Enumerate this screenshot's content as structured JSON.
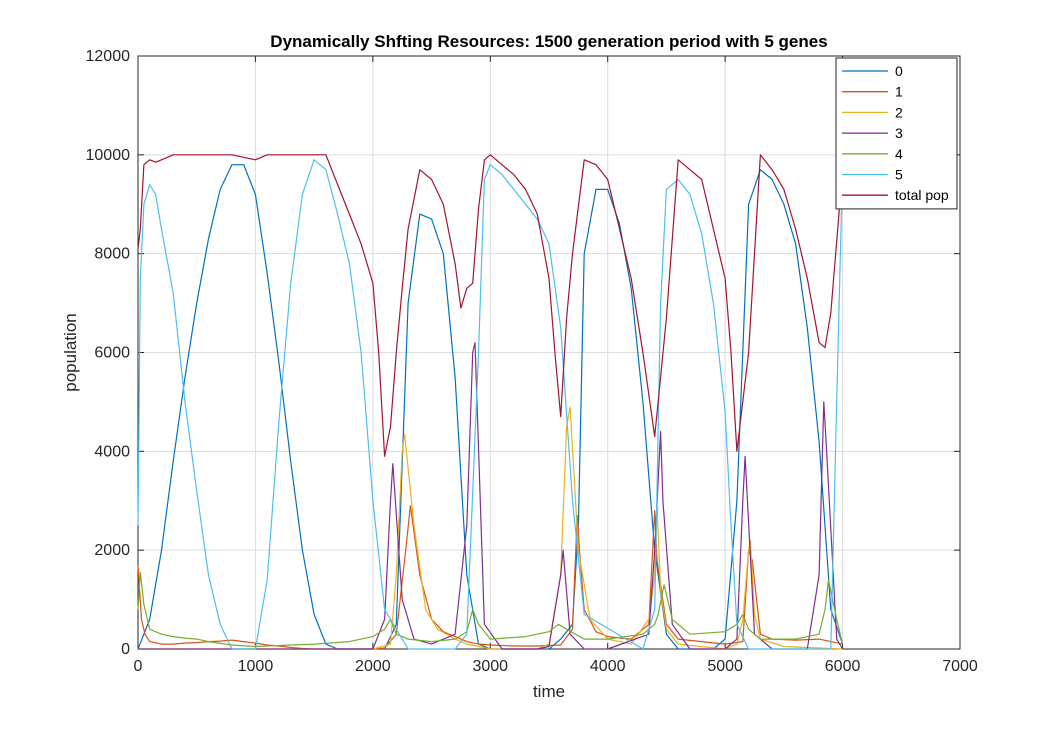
{
  "chart_data": {
    "type": "line",
    "title": "Dynamically Shfting Resources: 1500 generation period with 5 genes",
    "xlabel": "time",
    "ylabel": "population",
    "xlim": [
      0,
      7000
    ],
    "ylim": [
      0,
      12000
    ],
    "xticks": [
      0,
      1000,
      2000,
      3000,
      4000,
      5000,
      6000,
      7000
    ],
    "yticks": [
      0,
      2000,
      4000,
      6000,
      8000,
      10000,
      12000
    ],
    "xtick_labels": [
      "0",
      "1000",
      "2000",
      "3000",
      "4000",
      "5000",
      "6000",
      "7000"
    ],
    "ytick_labels": [
      "0",
      "2000",
      "4000",
      "6000",
      "8000",
      "10000",
      "12000"
    ],
    "grid": true,
    "legend_position": "top-right",
    "series": [
      {
        "name": "0",
        "color": "#0072bd",
        "x": [
          0,
          100,
          200,
          300,
          400,
          500,
          600,
          700,
          800,
          900,
          1000,
          1100,
          1200,
          1300,
          1400,
          1500,
          1600,
          1700,
          1800,
          1900,
          2000,
          2100,
          2200,
          2300,
          2400,
          2500,
          2600,
          2700,
          2800,
          2900,
          3000,
          3100,
          3200,
          3300,
          3400,
          3500,
          3600,
          3700,
          3750,
          3800,
          3900,
          4000,
          4100,
          4200,
          4300,
          4400,
          4500,
          4600,
          4700,
          4800,
          4900,
          5000,
          5100,
          5200,
          5300,
          5400,
          5500,
          5600,
          5700,
          5800,
          5900,
          6000
        ],
        "y": [
          0,
          600,
          2000,
          3800,
          5500,
          7000,
          8300,
          9300,
          9800,
          9800,
          9200,
          7600,
          5800,
          3800,
          2000,
          700,
          100,
          0,
          0,
          0,
          0,
          0,
          500,
          7000,
          8800,
          8700,
          8000,
          5500,
          1500,
          100,
          0,
          0,
          0,
          0,
          0,
          0,
          200,
          500,
          2500,
          8000,
          9300,
          9300,
          8600,
          7300,
          5000,
          2000,
          300,
          0,
          0,
          0,
          0,
          200,
          3000,
          9000,
          9700,
          9500,
          9000,
          8200,
          6500,
          4200,
          800,
          100
        ]
      },
      {
        "name": "1",
        "color": "#d95319",
        "x": [
          0,
          30,
          60,
          100,
          200,
          300,
          400,
          500,
          600,
          700,
          800,
          900,
          1000,
          1100,
          1200,
          1300,
          1400,
          1500,
          1600,
          1800,
          2000,
          2100,
          2200,
          2280,
          2320,
          2400,
          2500,
          2600,
          2700,
          2800,
          2900,
          3000,
          3200,
          3400,
          3600,
          3700,
          3740,
          3760,
          3800,
          3900,
          4000,
          4200,
          4350,
          4400,
          4420,
          4500,
          4600,
          4800,
          5000,
          5150,
          5200,
          5230,
          5300,
          5400,
          5600,
          5800,
          5900,
          6000
        ],
        "y": [
          1700,
          600,
          300,
          150,
          100,
          100,
          120,
          130,
          150,
          160,
          180,
          150,
          120,
          80,
          60,
          30,
          10,
          0,
          0,
          0,
          0,
          20,
          300,
          2000,
          2900,
          1500,
          600,
          350,
          250,
          150,
          100,
          80,
          60,
          60,
          80,
          400,
          2700,
          2000,
          800,
          350,
          250,
          200,
          500,
          2800,
          1800,
          500,
          200,
          150,
          100,
          150,
          2000,
          1800,
          300,
          200,
          180,
          200,
          150,
          100
        ]
      },
      {
        "name": "2",
        "color": "#edb120",
        "x": [
          0,
          200,
          1000,
          1800,
          2000,
          2150,
          2200,
          2250,
          2270,
          2350,
          2450,
          2550,
          2700,
          2800,
          2900,
          3000,
          3400,
          3500,
          3600,
          3650,
          3680,
          3750,
          3850,
          4000,
          4200,
          4350,
          4400,
          4420,
          4450,
          4500,
          4600,
          5000,
          5100,
          5150,
          5200,
          5215,
          5250,
          5300,
          5500,
          6000
        ],
        "y": [
          0,
          0,
          0,
          0,
          0,
          100,
          1500,
          4000,
          4350,
          2500,
          800,
          400,
          200,
          100,
          50,
          0,
          0,
          100,
          1500,
          4500,
          4900,
          2000,
          600,
          200,
          100,
          600,
          1500,
          2900,
          1200,
          400,
          100,
          0,
          100,
          600,
          2000,
          2200,
          700,
          200,
          50,
          0
        ]
      },
      {
        "name": "3",
        "color": "#7e2f8e",
        "x": [
          0,
          2000,
          2100,
          2150,
          2170,
          2250,
          2350,
          2500,
          2700,
          2800,
          2850,
          2870,
          2950,
          3100,
          3400,
          3500,
          3600,
          3620,
          3680,
          3800,
          4000,
          4350,
          4400,
          4450,
          4470,
          4550,
          4700,
          5000,
          5100,
          5150,
          5170,
          5250,
          5400,
          5700,
          5800,
          5840,
          5860,
          5950,
          6000
        ],
        "y": [
          0,
          0,
          600,
          3000,
          3750,
          1000,
          200,
          100,
          300,
          2500,
          6000,
          6200,
          500,
          0,
          0,
          50,
          1500,
          2000,
          300,
          0,
          0,
          300,
          2000,
          4400,
          3000,
          500,
          0,
          0,
          200,
          3000,
          3900,
          300,
          0,
          0,
          1500,
          5000,
          4200,
          200,
          0
        ]
      },
      {
        "name": "4",
        "color": "#77ac30",
        "x": [
          0,
          20,
          50,
          100,
          200,
          300,
          400,
          500,
          600,
          800,
          1000,
          1200,
          1500,
          1800,
          2000,
          2100,
          2150,
          2200,
          2300,
          2500,
          2700,
          2800,
          2850,
          2900,
          3000,
          3300,
          3500,
          3580,
          3650,
          3800,
          4000,
          4300,
          4400,
          4430,
          4480,
          4550,
          4700,
          5000,
          5100,
          5150,
          5200,
          5300,
          5600,
          5800,
          5850,
          5880,
          5950,
          6000
        ],
        "y": [
          800,
          1550,
          900,
          400,
          300,
          250,
          220,
          200,
          150,
          80,
          50,
          70,
          100,
          150,
          250,
          400,
          600,
          300,
          200,
          150,
          200,
          350,
          800,
          500,
          200,
          250,
          350,
          500,
          400,
          200,
          200,
          300,
          500,
          700,
          1300,
          600,
          300,
          350,
          500,
          700,
          400,
          200,
          200,
          300,
          800,
          1400,
          600,
          100
        ]
      },
      {
        "name": "5",
        "color": "#4dbeee",
        "x": [
          0,
          20,
          50,
          100,
          150,
          200,
          300,
          400,
          500,
          600,
          700,
          800,
          1000,
          1100,
          1200,
          1300,
          1400,
          1500,
          1600,
          1700,
          1800,
          1900,
          2000,
          2100,
          2300,
          2700,
          2800,
          2900,
          2950,
          3000,
          3100,
          3200,
          3300,
          3400,
          3500,
          3600,
          3700,
          3800,
          4300,
          4400,
          4450,
          4500,
          4600,
          4700,
          4800,
          4900,
          5000,
          5050,
          5100,
          5200,
          5900,
          5950,
          6000
        ],
        "y": [
          2500,
          7500,
          9000,
          9400,
          9200,
          8500,
          7200,
          5000,
          3200,
          1500,
          500,
          0,
          0,
          1400,
          4600,
          7400,
          9200,
          9900,
          9700,
          8800,
          7800,
          6000,
          3000,
          800,
          0,
          0,
          300,
          6000,
          9500,
          9800,
          9600,
          9300,
          9000,
          8700,
          8200,
          6500,
          3000,
          700,
          0,
          800,
          7000,
          9300,
          9500,
          9200,
          8400,
          7000,
          4800,
          2500,
          500,
          0,
          0,
          5000,
          9800
        ]
      },
      {
        "name": "total pop",
        "color": "#a2142f",
        "x": [
          0,
          20,
          50,
          100,
          150,
          200,
          300,
          400,
          500,
          600,
          700,
          800,
          900,
          1000,
          1100,
          1200,
          1300,
          1400,
          1500,
          1600,
          1700,
          1800,
          1900,
          2000,
          2050,
          2100,
          2150,
          2200,
          2250,
          2300,
          2400,
          2500,
          2600,
          2700,
          2750,
          2800,
          2850,
          2900,
          2950,
          3000,
          3100,
          3200,
          3300,
          3400,
          3500,
          3550,
          3600,
          3650,
          3700,
          3800,
          3900,
          4000,
          4100,
          4200,
          4300,
          4400,
          4450,
          4500,
          4600,
          4700,
          4800,
          4900,
          5000,
          5050,
          5100,
          5200,
          5300,
          5400,
          5500,
          5600,
          5700,
          5800,
          5850,
          5900,
          6000
        ],
        "y": [
          8100,
          8500,
          9800,
          9900,
          9850,
          9900,
          10000,
          10000,
          10000,
          10000,
          10000,
          10000,
          9950,
          9900,
          10000,
          10000,
          10000,
          10000,
          10000,
          10000,
          9400,
          8800,
          8200,
          7400,
          6000,
          3900,
          4500,
          6000,
          7300,
          8500,
          9700,
          9500,
          9000,
          7800,
          6900,
          7300,
          7400,
          8900,
          9900,
          10000,
          9800,
          9600,
          9300,
          8800,
          7500,
          6000,
          4700,
          6700,
          8000,
          9900,
          9800,
          9500,
          8500,
          7500,
          6000,
          4300,
          5500,
          6700,
          9900,
          9700,
          9500,
          8500,
          7500,
          6000,
          4000,
          6000,
          10000,
          9700,
          9300,
          8500,
          7500,
          6200,
          6100,
          6800,
          9700
        ]
      }
    ]
  }
}
